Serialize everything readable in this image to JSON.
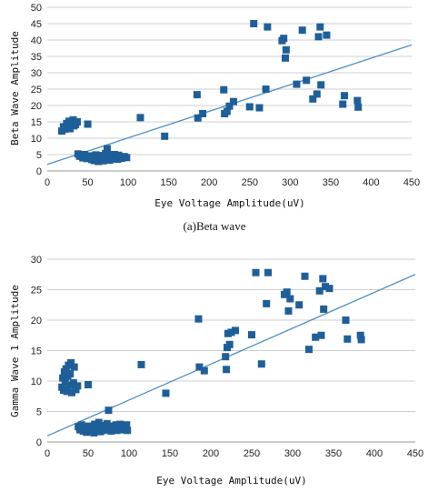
{
  "chart_data": [
    {
      "type": "scatter",
      "caption": "(a)Beta wave",
      "xlabel": "Eye Voltage Amplitude(uV)",
      "ylabel": "Beta Wave Amplitude",
      "xlim": [
        0,
        450
      ],
      "ylim": [
        0,
        50
      ],
      "xticks": [
        0,
        50,
        100,
        150,
        200,
        250,
        300,
        350,
        400,
        450
      ],
      "yticks": [
        0,
        5,
        10,
        15,
        20,
        25,
        30,
        35,
        40,
        45,
        50
      ],
      "grid": "horizontal",
      "marker_color": "#1f5f99",
      "trendline_color": "#4f8fc0",
      "trendline": [
        [
          0,
          2.0
        ],
        [
          450,
          38.5
        ]
      ],
      "points": [
        [
          18,
          12.2
        ],
        [
          20,
          13.5
        ],
        [
          22,
          12.8
        ],
        [
          24,
          14.5
        ],
        [
          25,
          13.2
        ],
        [
          27,
          15.2
        ],
        [
          28,
          12.9
        ],
        [
          30,
          14.8
        ],
        [
          32,
          15.6
        ],
        [
          33,
          13.8
        ],
        [
          35,
          14.2
        ],
        [
          37,
          15.0
        ],
        [
          38,
          5.2
        ],
        [
          40,
          4.5
        ],
        [
          42,
          4.8
        ],
        [
          44,
          4.0
        ],
        [
          46,
          5.0
        ],
        [
          47,
          4.2
        ],
        [
          49,
          3.8
        ],
        [
          50,
          14.3
        ],
        [
          51,
          4.6
        ],
        [
          53,
          4.1
        ],
        [
          55,
          3.5
        ],
        [
          57,
          4.4
        ],
        [
          58,
          3.2
        ],
        [
          60,
          4.9
        ],
        [
          61,
          3.9
        ],
        [
          63,
          2.9
        ],
        [
          64,
          4.3
        ],
        [
          66,
          3.5
        ],
        [
          67,
          4.7
        ],
        [
          69,
          3.1
        ],
        [
          70,
          4.0
        ],
        [
          72,
          5.3
        ],
        [
          73,
          3.6
        ],
        [
          74,
          6.8
        ],
        [
          75,
          4.5
        ],
        [
          77,
          3.3
        ],
        [
          78,
          4.9
        ],
        [
          80,
          4.1
        ],
        [
          82,
          3.7
        ],
        [
          83,
          5.0
        ],
        [
          85,
          4.3
        ],
        [
          87,
          3.6
        ],
        [
          88,
          4.8
        ],
        [
          90,
          4.0
        ],
        [
          92,
          3.9
        ],
        [
          95,
          4.4
        ],
        [
          98,
          4.1
        ],
        [
          115,
          16.3
        ],
        [
          145,
          10.6
        ],
        [
          185,
          23.3
        ],
        [
          186,
          16.2
        ],
        [
          192,
          17.5
        ],
        [
          218,
          24.8
        ],
        [
          219,
          17.5
        ],
        [
          222,
          18.2
        ],
        [
          225,
          19.8
        ],
        [
          230,
          21.2
        ],
        [
          250,
          19.6
        ],
        [
          255,
          45.0
        ],
        [
          262,
          19.3
        ],
        [
          270,
          25.0
        ],
        [
          272,
          44.0
        ],
        [
          290,
          39.8
        ],
        [
          292,
          40.5
        ],
        [
          294,
          34.5
        ],
        [
          295,
          37.0
        ],
        [
          308,
          26.5
        ],
        [
          315,
          43.0
        ],
        [
          320,
          27.7
        ],
        [
          328,
          22.0
        ],
        [
          333,
          23.5
        ],
        [
          335,
          41.0
        ],
        [
          337,
          44.0
        ],
        [
          338,
          26.3
        ],
        [
          345,
          41.5
        ],
        [
          365,
          20.4
        ],
        [
          367,
          23.0
        ],
        [
          383,
          21.5
        ],
        [
          384,
          19.5
        ]
      ]
    },
    {
      "type": "scatter",
      "caption": "",
      "xlabel": "Eye Voltage Amplitude(uV)",
      "ylabel": "Gamma Wave 1 Amplitude",
      "xlim": [
        0,
        450
      ],
      "ylim": [
        0,
        30
      ],
      "xticks": [
        0,
        50,
        100,
        150,
        200,
        250,
        300,
        350,
        400,
        450
      ],
      "yticks": [
        0,
        5,
        10,
        15,
        20,
        25,
        30
      ],
      "grid": "horizontal",
      "marker_color": "#1f5f99",
      "trendline_color": "#4f8fc0",
      "trendline": [
        [
          0,
          1.0
        ],
        [
          450,
          27.5
        ]
      ],
      "points": [
        [
          18,
          9.0
        ],
        [
          19,
          10.5
        ],
        [
          20,
          8.5
        ],
        [
          21,
          11.5
        ],
        [
          22,
          9.8
        ],
        [
          23,
          12.0
        ],
        [
          24,
          8.3
        ],
        [
          25,
          10.8
        ],
        [
          26,
          12.6
        ],
        [
          27,
          9.3
        ],
        [
          28,
          11.2
        ],
        [
          29,
          13.0
        ],
        [
          30,
          8.1
        ],
        [
          32,
          9.7
        ],
        [
          33,
          12.3
        ],
        [
          35,
          8.6
        ],
        [
          37,
          9.2
        ],
        [
          38,
          2.5
        ],
        [
          40,
          2.0
        ],
        [
          42,
          2.8
        ],
        [
          44,
          1.8
        ],
        [
          46,
          2.3
        ],
        [
          48,
          1.6
        ],
        [
          50,
          9.4
        ],
        [
          51,
          2.6
        ],
        [
          53,
          1.9
        ],
        [
          55,
          2.4
        ],
        [
          57,
          1.5
        ],
        [
          58,
          2.9
        ],
        [
          60,
          1.8
        ],
        [
          62,
          2.3
        ],
        [
          63,
          3.2
        ],
        [
          65,
          1.7
        ],
        [
          67,
          2.5
        ],
        [
          68,
          1.9
        ],
        [
          70,
          2.7
        ],
        [
          72,
          2.0
        ],
        [
          73,
          3.0
        ],
        [
          75,
          5.2
        ],
        [
          76,
          2.2
        ],
        [
          78,
          1.8
        ],
        [
          80,
          2.6
        ],
        [
          82,
          2.1
        ],
        [
          84,
          2.8
        ],
        [
          85,
          1.9
        ],
        [
          87,
          2.4
        ],
        [
          89,
          2.9
        ],
        [
          90,
          2.0
        ],
        [
          92,
          2.5
        ],
        [
          95,
          2.2
        ],
        [
          97,
          2.8
        ],
        [
          98,
          1.9
        ],
        [
          115,
          12.7
        ],
        [
          145,
          8.0
        ],
        [
          185,
          20.2
        ],
        [
          186,
          12.3
        ],
        [
          192,
          11.7
        ],
        [
          218,
          14.0
        ],
        [
          219,
          11.9
        ],
        [
          220,
          15.5
        ],
        [
          221,
          17.8
        ],
        [
          223,
          16.0
        ],
        [
          225,
          18.0
        ],
        [
          230,
          18.3
        ],
        [
          250,
          17.6
        ],
        [
          255,
          27.8
        ],
        [
          262,
          12.8
        ],
        [
          268,
          22.7
        ],
        [
          270,
          27.8
        ],
        [
          290,
          24.2
        ],
        [
          293,
          24.6
        ],
        [
          295,
          21.5
        ],
        [
          297,
          23.5
        ],
        [
          308,
          22.5
        ],
        [
          315,
          27.2
        ],
        [
          320,
          15.2
        ],
        [
          328,
          17.2
        ],
        [
          333,
          24.8
        ],
        [
          335,
          17.5
        ],
        [
          337,
          26.8
        ],
        [
          338,
          21.8
        ],
        [
          340,
          25.5
        ],
        [
          345,
          25.2
        ],
        [
          365,
          20.0
        ],
        [
          367,
          16.9
        ],
        [
          383,
          17.5
        ],
        [
          384,
          16.8
        ]
      ]
    }
  ]
}
